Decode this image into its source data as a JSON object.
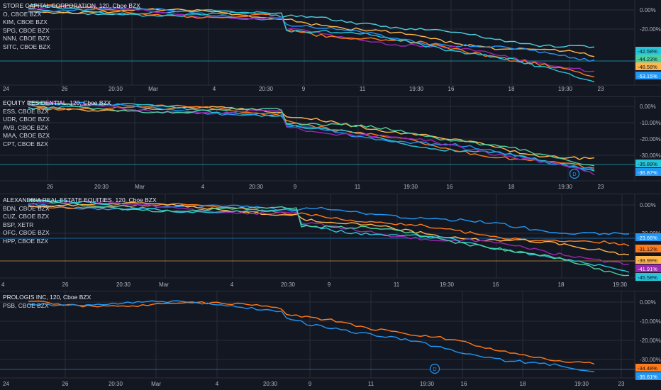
{
  "colors": {
    "background": "#131722",
    "grid": "#2a2e39",
    "axis_text": "#b2b5be"
  },
  "panes": [
    {
      "id": "pane1",
      "main": "STORE CAPITAL CORPORATION, 120, Cboe BZX",
      "symbols": [
        "O, CBOE BZX",
        "KIM, CBOE BZX",
        "SPG, CBOE BZX",
        "NNN, CBOE BZX",
        "SITC, CBOE BZX"
      ],
      "ylabels": [
        "0.00%",
        "-20.00%"
      ],
      "badges": [
        {
          "text": "-42.58%",
          "color": "#26c6da"
        },
        {
          "text": "-44.23%",
          "color": "#4dd0a0"
        },
        {
          "text": "-48.58%",
          "color": "#ffb74d"
        },
        {
          "text": "-53.15%",
          "color": "#2196f3"
        }
      ],
      "xlabels": [
        "24",
        "26",
        "20:30",
        "Mar",
        "4",
        "20:30",
        "9",
        "11",
        "19:30",
        "16",
        "18",
        "19:30",
        "23"
      ]
    },
    {
      "id": "pane2",
      "main": "EQUITY RESIDENTIAL, 120, Cboe BZX",
      "symbols": [
        "ESS, CBOE BZX",
        "UDR, CBOE BZX",
        "AVB, CBOE BZX",
        "MAA, CBOE BZX",
        "CPT, CBOE BZX"
      ],
      "ylabels": [
        "0.00%",
        "-10.00%",
        "-20.00%",
        "-30.00%"
      ],
      "badges": [
        {
          "text": "-35.89%",
          "color": "#26c6da"
        },
        {
          "text": "-36.87%",
          "color": "#2196f3"
        }
      ],
      "xlabels": [
        "26",
        "20:30",
        "Mar",
        "4",
        "20:30",
        "9",
        "11",
        "19:30",
        "16",
        "18",
        "19:30",
        "23"
      ],
      "event": "D"
    },
    {
      "id": "pane3",
      "main": "ALEXANDRIA REAL ESTATE EQUITIES, 120, Cboe BZX",
      "symbols": [
        "BDN, CBOE BZX",
        "CUZ, CBOE BZX",
        "BSP, XETR",
        "OFC, CBOE BZX",
        "HPP, CBOE BZX"
      ],
      "ylabels": [
        "0.00%",
        "-20.00%"
      ],
      "badges": [
        {
          "text": "-23.66%",
          "color": "#2196f3"
        },
        {
          "text": "-31.12%",
          "color": "#ff7a1a"
        },
        {
          "text": "-39.99%",
          "color": "#ffb74d"
        },
        {
          "text": "-41.91%",
          "color": "#9c27b0"
        },
        {
          "text": "-45.58%",
          "color": "#26c6da"
        }
      ],
      "xlabels": [
        "4",
        "26",
        "20:30",
        "Mar",
        "4",
        "20:30",
        "9",
        "11",
        "19:30",
        "16",
        "18",
        "19:30"
      ]
    },
    {
      "id": "pane4",
      "main": "PROLOGIS INC, 120, Cboe BZX",
      "symbols": [
        "PSB, CBOE BZX"
      ],
      "ylabels": [
        "0.00%",
        "-10.00%",
        "-20.00%",
        "-30.00%"
      ],
      "badges": [
        {
          "text": "-34.48%",
          "color": "#ff7a1a"
        },
        {
          "text": "-35.61%",
          "color": "#2196f3"
        }
      ],
      "xlabels": [
        "24",
        "26",
        "20:30",
        "Mar",
        "4",
        "20:30",
        "9",
        "11",
        "19:30",
        "16",
        "18",
        "19:30",
        "23"
      ],
      "event": "D"
    }
  ]
}
